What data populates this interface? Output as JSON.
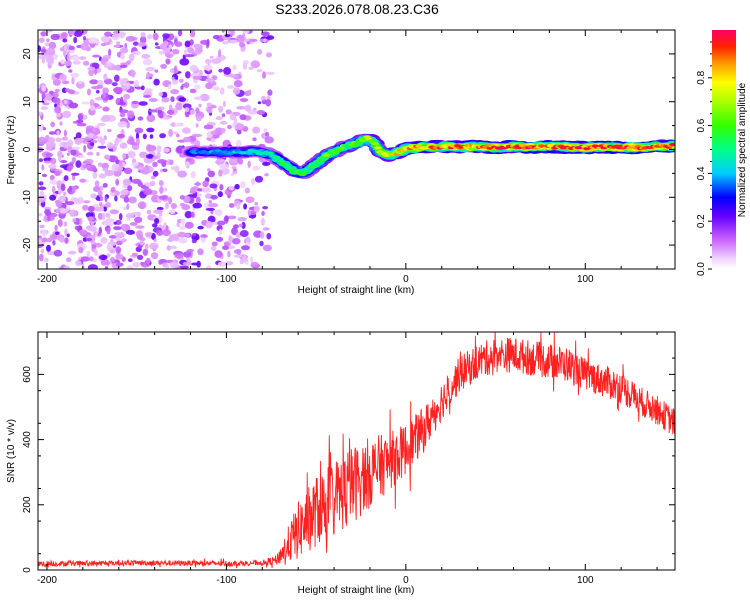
{
  "title": "S233.2026.078.08.23.C36",
  "chart_data": [
    {
      "type": "heatmap",
      "xlabel": "Height of straight line (km)",
      "ylabel": "Frequency (Hz)",
      "xlim": [
        -205,
        150
      ],
      "ylim": [
        -25,
        25
      ],
      "xticks": [
        -200,
        -100,
        0,
        100
      ],
      "yticks": [
        -20,
        -10,
        0,
        10,
        20
      ],
      "colorbar": {
        "label": "Normalized spectral amplitude",
        "ticks": [
          0.0,
          0.2,
          0.4,
          0.6,
          0.8
        ],
        "range": [
          0,
          1
        ]
      },
      "noise_region_x": [
        -205,
        -75
      ],
      "ridge": {
        "x": [
          -120,
          -100,
          -85,
          -75,
          -68,
          -62,
          -58,
          -55,
          -50,
          -45,
          -40,
          -35,
          -30,
          -25,
          -22,
          -18,
          -14,
          -10,
          -5,
          0,
          10,
          20,
          30,
          40,
          50,
          60,
          70,
          80,
          90,
          100,
          110,
          120,
          130,
          140,
          150
        ],
        "freq": [
          -0.5,
          -0.6,
          -0.4,
          -1.0,
          -3.0,
          -4.5,
          -5.0,
          -4.5,
          -3.0,
          -1.5,
          -0.5,
          0.5,
          1.0,
          1.8,
          2.5,
          1.5,
          -0.5,
          -1.2,
          -0.8,
          0.2,
          0.5,
          0.6,
          0.5,
          0.6,
          0.4,
          0.6,
          0.5,
          0.6,
          0.5,
          0.4,
          0.5,
          0.5,
          0.4,
          0.6,
          0.8
        ],
        "amplitude": [
          0.35,
          0.4,
          0.45,
          0.45,
          0.55,
          0.6,
          0.55,
          0.55,
          0.6,
          0.62,
          0.62,
          0.6,
          0.62,
          0.65,
          0.72,
          0.7,
          0.7,
          0.75,
          0.8,
          0.82,
          0.85,
          0.88,
          0.9,
          0.9,
          0.92,
          0.92,
          0.93,
          0.93,
          0.94,
          0.94,
          0.95,
          0.95,
          0.95,
          0.96,
          0.96
        ]
      }
    },
    {
      "type": "line",
      "xlabel": "Height of straight line (km)",
      "ylabel": "SNR (10 * v/v)",
      "xlim": [
        -205,
        150
      ],
      "ylim": [
        0,
        730
      ],
      "xticks": [
        -200,
        -100,
        0,
        100
      ],
      "yticks": [
        0,
        200,
        400,
        600
      ],
      "series": [
        {
          "name": "SNR",
          "color": "#ff2020",
          "x": [
            -205,
            -180,
            -150,
            -120,
            -100,
            -80,
            -72,
            -68,
            -60,
            -50,
            -40,
            -30,
            -20,
            -10,
            0,
            10,
            20,
            30,
            40,
            50,
            60,
            70,
            80,
            90,
            100,
            110,
            120,
            130,
            140,
            150
          ],
          "y": [
            18,
            20,
            22,
            21,
            20,
            22,
            30,
            60,
            120,
            180,
            220,
            260,
            300,
            330,
            370,
            430,
            520,
            600,
            640,
            660,
            660,
            650,
            640,
            630,
            600,
            580,
            560,
            520,
            490,
            450
          ],
          "noise_amplitude": [
            8,
            8,
            8,
            8,
            8,
            8,
            15,
            40,
            90,
            110,
            120,
            120,
            110,
            90,
            80,
            70,
            60,
            55,
            55,
            55,
            55,
            55,
            55,
            55,
            50,
            50,
            50,
            45,
            45,
            45
          ]
        }
      ]
    }
  ]
}
